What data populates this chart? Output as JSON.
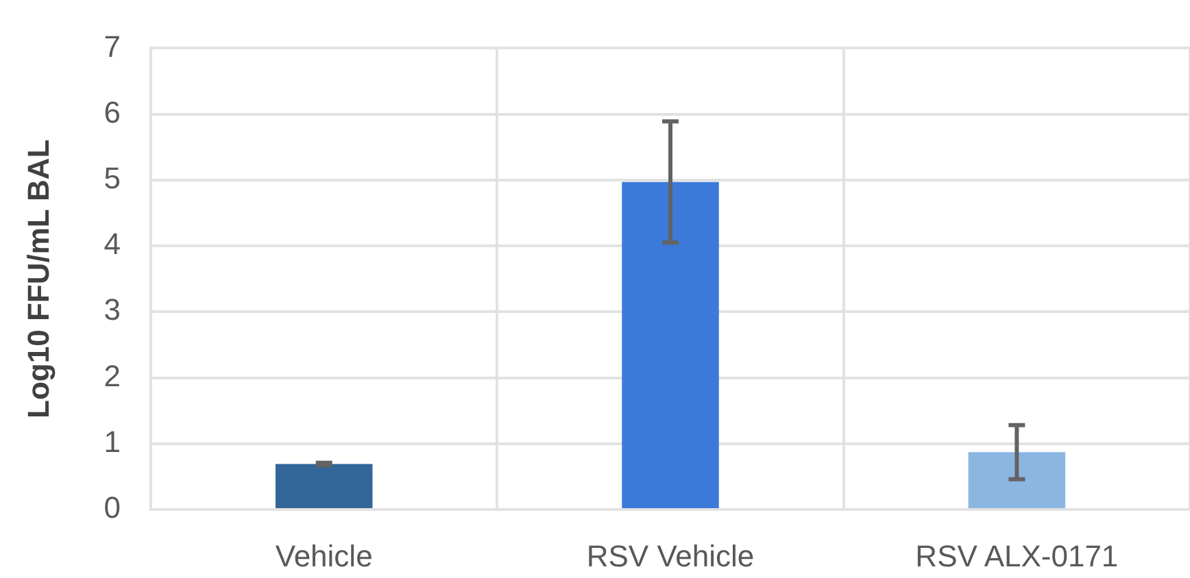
{
  "chart_data": {
    "type": "bar",
    "ylabel": "Log10 FFU/mL BAL",
    "categories": [
      "Vehicle",
      "RSV Vehicle",
      "RSV ALX-0171"
    ],
    "values": [
      0.69,
      4.97,
      0.87
    ],
    "colors": [
      "#336699",
      "#3c7ad9",
      "#8cb6e2"
    ],
    "errors": [
      0.02,
      0.92,
      0.41
    ],
    "ylim": [
      0,
      7
    ],
    "yticks": [
      0,
      1,
      2,
      3,
      4,
      5,
      6,
      7
    ],
    "grid": true
  }
}
